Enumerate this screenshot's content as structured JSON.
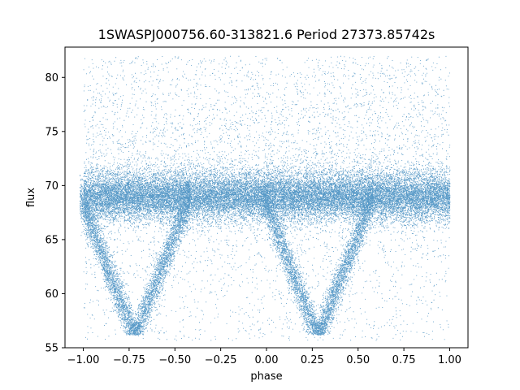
{
  "chart_data": {
    "type": "scatter",
    "title": "1SWASPJ000756.60-313821.6 Period 27373.85742s",
    "xlabel": "phase",
    "ylabel": "flux",
    "xlim": [
      -1.1,
      1.1
    ],
    "ylim": [
      55,
      82.8
    ],
    "xticks": [
      -1.0,
      -0.75,
      -0.5,
      -0.25,
      0.0,
      0.25,
      0.5,
      0.75,
      1.0
    ],
    "xtick_labels": [
      "−1.00",
      "−0.75",
      "−0.50",
      "−0.25",
      "0.00",
      "0.25",
      "0.50",
      "0.75",
      "1.00"
    ],
    "yticks": [
      55,
      60,
      65,
      70,
      75,
      80
    ],
    "ytick_labels": [
      "55",
      "60",
      "65",
      "70",
      "75",
      "80"
    ],
    "grid": false,
    "legend": "none",
    "marker_color": "#1f77b4",
    "series": [
      {
        "description_points": "phase-folded light curve, dense band around flux 68-70 with eclipse dips",
        "baseline_flux": 69.0,
        "band_halfwidth": 2.2,
        "eclipses": [
          {
            "phase": -0.72,
            "depth_flux": 56.0
          },
          {
            "phase": 0.28,
            "depth_flux": 56.0
          }
        ],
        "phase_range": [
          -1.0,
          1.0
        ],
        "flux_range": [
          55.7,
          82.0
        ]
      }
    ]
  }
}
